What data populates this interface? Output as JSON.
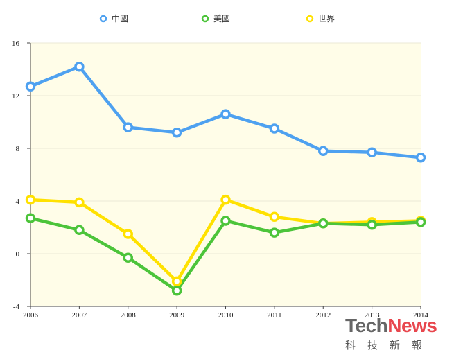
{
  "chart_data": {
    "type": "line",
    "x": [
      "2006",
      "2007",
      "2008",
      "2009",
      "2010",
      "2011",
      "2012",
      "2013",
      "2014"
    ],
    "series": [
      {
        "name": "中國",
        "color": "#4ea1f0",
        "values": [
          12.7,
          14.2,
          9.6,
          9.2,
          10.6,
          9.5,
          7.8,
          7.7,
          7.3
        ]
      },
      {
        "name": "美國",
        "color": "#4cc43a",
        "values": [
          2.7,
          1.8,
          -0.3,
          -2.8,
          2.5,
          1.6,
          2.3,
          2.2,
          2.4
        ]
      },
      {
        "name": "世界",
        "color": "#ffe100",
        "values": [
          4.1,
          3.9,
          1.5,
          -2.1,
          4.1,
          2.8,
          2.3,
          2.4,
          2.5
        ]
      }
    ],
    "ylim": [
      -4,
      16
    ],
    "yticks": [
      "-4",
      "0",
      "4",
      "8",
      "12",
      "16"
    ],
    "title": "",
    "xlabel": "",
    "ylabel": "",
    "grid": true,
    "legend_position": "top-center",
    "plot_background": "#fffde8"
  },
  "logo": {
    "tech": "Tech",
    "news": "News",
    "subtitle": "科技新報"
  }
}
